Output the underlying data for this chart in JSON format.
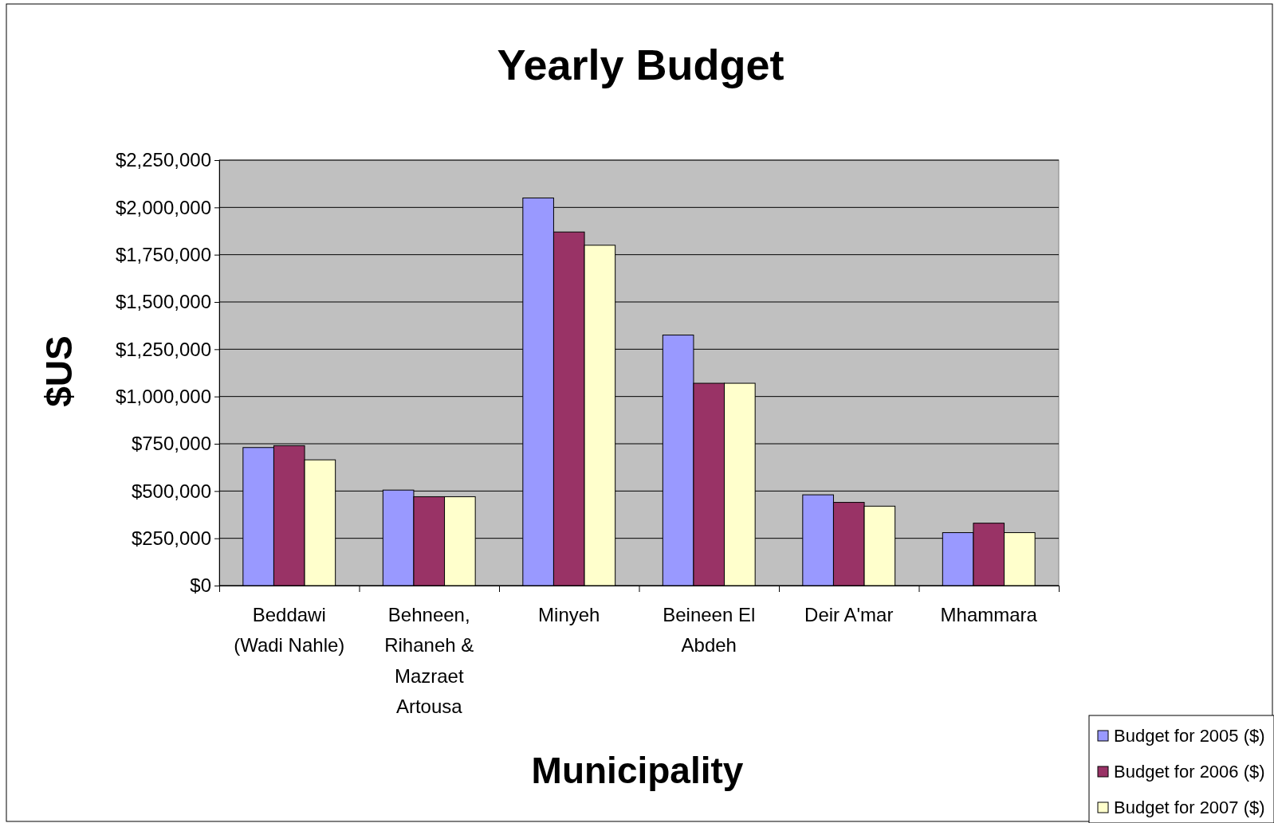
{
  "chart_data": {
    "type": "bar",
    "title": "Yearly Budget",
    "xlabel": "Municipality",
    "ylabel": "$US",
    "categories": [
      "Beddawi (Wadi Nahle)",
      "Behneen, Rihaneh & Mazraet Artousa",
      "Minyeh",
      "Beineen El Abdeh",
      "Deir A'mar",
      "Mhammara"
    ],
    "series": [
      {
        "name": "Budget for 2005 ($)",
        "color": "#9999ff",
        "values": [
          730000,
          505000,
          2050000,
          1325000,
          480000,
          280000
        ]
      },
      {
        "name": "Budget for 2006 ($)",
        "color": "#993366",
        "values": [
          740000,
          470000,
          1870000,
          1070000,
          440000,
          330000
        ]
      },
      {
        "name": "Budget for 2007 ($)",
        "color": "#ffffcc",
        "values": [
          665000,
          470000,
          1800000,
          1070000,
          420000,
          280000
        ]
      }
    ],
    "ylim": [
      0,
      2250000
    ],
    "yticks": [
      {
        "value": 0,
        "label": "$0"
      },
      {
        "value": 250000,
        "label": "$250,000"
      },
      {
        "value": 500000,
        "label": "$500,000"
      },
      {
        "value": 750000,
        "label": "$750,000"
      },
      {
        "value": 1000000,
        "label": "$1,000,000"
      },
      {
        "value": 1250000,
        "label": "$1,250,000"
      },
      {
        "value": 1500000,
        "label": "$1,500,000"
      },
      {
        "value": 1750000,
        "label": "$1,750,000"
      },
      {
        "value": 2000000,
        "label": "$2,000,000"
      },
      {
        "value": 2250000,
        "label": "$2,250,000"
      }
    ],
    "grid": "y",
    "legend": "bottom right"
  }
}
